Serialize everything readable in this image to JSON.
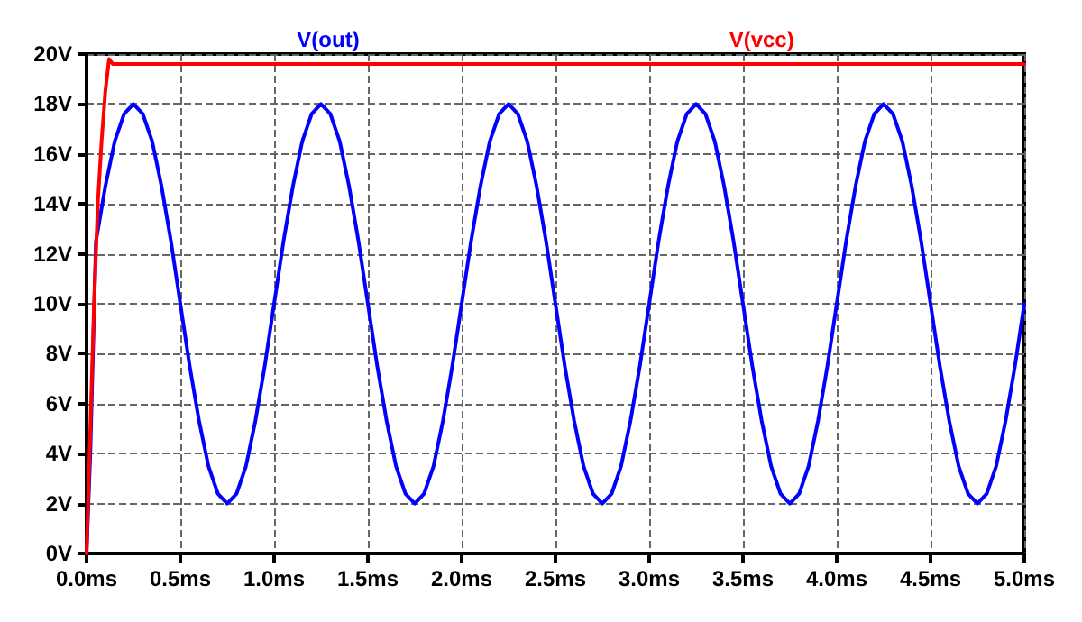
{
  "chart_data": {
    "type": "line",
    "xlim": [
      0,
      5
    ],
    "ylim": [
      0,
      20
    ],
    "xticks": [
      {
        "value": 0,
        "label": "0.0ms"
      },
      {
        "value": 0.5,
        "label": "0.5ms"
      },
      {
        "value": 1,
        "label": "1.0ms"
      },
      {
        "value": 1.5,
        "label": "1.5ms"
      },
      {
        "value": 2,
        "label": "2.0ms"
      },
      {
        "value": 2.5,
        "label": "2.5ms"
      },
      {
        "value": 3,
        "label": "3.0ms"
      },
      {
        "value": 3.5,
        "label": "3.5ms"
      },
      {
        "value": 4,
        "label": "4.0ms"
      },
      {
        "value": 4.5,
        "label": "4.5ms"
      },
      {
        "value": 5,
        "label": "5.0ms"
      }
    ],
    "yticks": [
      {
        "value": 0,
        "label": "0V"
      },
      {
        "value": 2,
        "label": "2V"
      },
      {
        "value": 4,
        "label": "4V"
      },
      {
        "value": 6,
        "label": "6V"
      },
      {
        "value": 8,
        "label": "8V"
      },
      {
        "value": 10,
        "label": "10V"
      },
      {
        "value": 12,
        "label": "12V"
      },
      {
        "value": 14,
        "label": "14V"
      },
      {
        "value": 16,
        "label": "16V"
      },
      {
        "value": 18,
        "label": "18V"
      },
      {
        "value": 20,
        "label": "20V"
      }
    ],
    "grid": true,
    "legend": "top",
    "marker": "none",
    "line_style": "solid",
    "series": [
      {
        "name": "V(out)",
        "color": "#0000ff",
        "x": [
          0,
          0.02,
          0.05,
          0.1,
          0.15,
          0.2,
          0.25,
          0.3,
          0.35,
          0.4,
          0.45,
          0.5,
          0.55,
          0.6,
          0.65,
          0.7,
          0.75,
          0.8,
          0.85,
          0.9,
          0.95,
          1,
          1.05,
          1.1,
          1.15,
          1.2,
          1.25,
          1.3,
          1.35,
          1.4,
          1.45,
          1.5,
          1.55,
          1.6,
          1.65,
          1.7,
          1.75,
          1.8,
          1.85,
          1.9,
          1.95,
          2,
          2.05,
          2.1,
          2.15,
          2.2,
          2.25,
          2.3,
          2.35,
          2.4,
          2.45,
          2.5,
          2.55,
          2.6,
          2.65,
          2.7,
          2.75,
          2.8,
          2.85,
          2.9,
          2.95,
          3,
          3.05,
          3.1,
          3.15,
          3.2,
          3.25,
          3.3,
          3.35,
          3.4,
          3.45,
          3.5,
          3.55,
          3.6,
          3.65,
          3.7,
          3.75,
          3.8,
          3.85,
          3.9,
          3.95,
          4,
          4.05,
          4.1,
          4.15,
          4.2,
          4.25,
          4.3,
          4.35,
          4.4,
          4.45,
          4.5,
          4.55,
          4.6,
          4.65,
          4.7,
          4.75,
          4.8,
          4.85,
          4.9,
          4.95,
          5
        ],
        "values": [
          0,
          4,
          12.5,
          14.7,
          16.5,
          17.6,
          18,
          17.6,
          16.5,
          14.7,
          12.5,
          10,
          7.5,
          5.3,
          3.5,
          2.4,
          2,
          2.4,
          3.5,
          5.3,
          7.5,
          10,
          12.5,
          14.7,
          16.5,
          17.6,
          18,
          17.6,
          16.5,
          14.7,
          12.5,
          10,
          7.5,
          5.3,
          3.5,
          2.4,
          2,
          2.4,
          3.5,
          5.3,
          7.5,
          10,
          12.5,
          14.7,
          16.5,
          17.6,
          18,
          17.6,
          16.5,
          14.7,
          12.5,
          10,
          7.5,
          5.3,
          3.5,
          2.4,
          2,
          2.4,
          3.5,
          5.3,
          7.5,
          10,
          12.5,
          14.7,
          16.5,
          17.6,
          18,
          17.6,
          16.5,
          14.7,
          12.5,
          10,
          7.5,
          5.3,
          3.5,
          2.4,
          2,
          2.4,
          3.5,
          5.3,
          7.5,
          10,
          12.5,
          14.7,
          16.5,
          17.6,
          18,
          17.6,
          16.5,
          14.7,
          12.5,
          10,
          7.5,
          5.3,
          3.5,
          2.4,
          2,
          2.4,
          3.5,
          5.3,
          7.5,
          10
        ]
      },
      {
        "name": "V(vcc)",
        "color": "#ff0000",
        "x": [
          0,
          0.02,
          0.04,
          0.06,
          0.08,
          0.1,
          0.12,
          0.14,
          5
        ],
        "values": [
          0,
          5,
          10,
          14,
          16.5,
          18.5,
          19.8,
          19.6,
          19.6
        ]
      }
    ]
  }
}
